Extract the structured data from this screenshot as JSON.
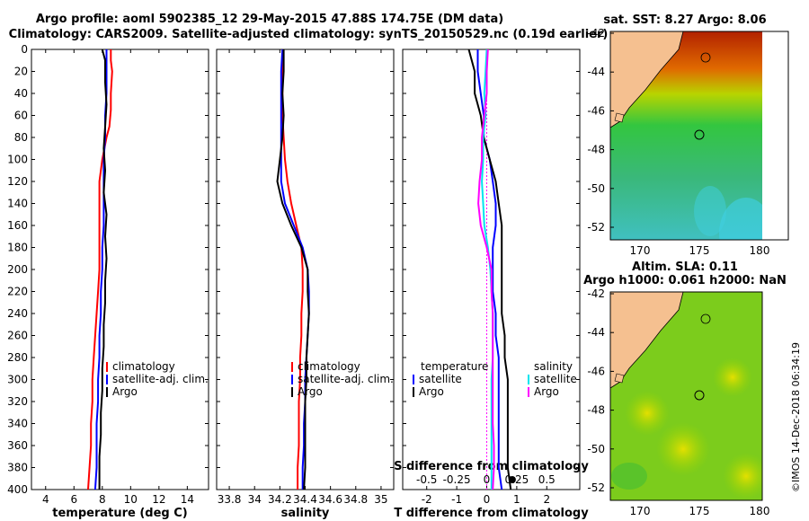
{
  "title_line1": "Argo profile: aoml 5902385_12 29-May-2015 47.88S 174.75E (DM data)",
  "title_line2": "Climatology: CARS2009. Satellite-adjusted climatology: synTS_20150529.nc (0.19d earlier)",
  "depth_ticks": [
    "0",
    "20",
    "40",
    "60",
    "80",
    "100",
    "120",
    "140",
    "160",
    "180",
    "200",
    "220",
    "240",
    "260",
    "280",
    "300",
    "320",
    "340",
    "360",
    "380",
    "400"
  ],
  "colors": {
    "climatology": "#ff0000",
    "satellite": "#0000ff",
    "argo": "#000000",
    "sat_salinity": "#00e5ee",
    "argo_salinity": "#ff00ff"
  },
  "chart_data": [
    {
      "type": "line",
      "name": "temperature",
      "xlabel": "temperature (deg C)",
      "xlim": [
        3,
        15.5
      ],
      "ylim": [
        0,
        400
      ],
      "xticks": [
        "4",
        "6",
        "8",
        "10",
        "12",
        "14"
      ],
      "legend": [
        "climatology",
        "satellite-adj. clim.",
        "Argo"
      ],
      "series": [
        {
          "name": "climatology",
          "color": "#ff0000",
          "points": [
            [
              8.6,
              0
            ],
            [
              8.6,
              10
            ],
            [
              8.7,
              20
            ],
            [
              8.6,
              40
            ],
            [
              8.6,
              55
            ],
            [
              8.5,
              70
            ],
            [
              8.3,
              80
            ],
            [
              8.0,
              100
            ],
            [
              7.8,
              120
            ],
            [
              7.8,
              140
            ],
            [
              7.8,
              160
            ],
            [
              7.8,
              180
            ],
            [
              7.8,
              200
            ],
            [
              7.7,
              220
            ],
            [
              7.6,
              240
            ],
            [
              7.5,
              260
            ],
            [
              7.4,
              280
            ],
            [
              7.3,
              300
            ],
            [
              7.3,
              320
            ],
            [
              7.2,
              340
            ],
            [
              7.2,
              360
            ],
            [
              7.1,
              380
            ],
            [
              7.0,
              400
            ]
          ]
        },
        {
          "name": "satellite-adj. clim.",
          "color": "#0000ff",
          "points": [
            [
              8.3,
              0
            ],
            [
              8.3,
              20
            ],
            [
              8.3,
              40
            ],
            [
              8.2,
              60
            ],
            [
              8.2,
              80
            ],
            [
              8.1,
              100
            ],
            [
              8.1,
              120
            ],
            [
              8.1,
              140
            ],
            [
              8.1,
              160
            ],
            [
              8.0,
              180
            ],
            [
              8.0,
              200
            ],
            [
              7.9,
              220
            ],
            [
              7.9,
              240
            ],
            [
              7.8,
              260
            ],
            [
              7.8,
              280
            ],
            [
              7.7,
              300
            ],
            [
              7.7,
              320
            ],
            [
              7.6,
              340
            ],
            [
              7.6,
              360
            ],
            [
              7.6,
              380
            ],
            [
              7.5,
              400
            ]
          ]
        },
        {
          "name": "Argo",
          "color": "#000000",
          "points": [
            [
              8.0,
              0
            ],
            [
              8.2,
              10
            ],
            [
              8.2,
              30
            ],
            [
              8.3,
              50
            ],
            [
              8.2,
              70
            ],
            [
              8.1,
              90
            ],
            [
              8.2,
              110
            ],
            [
              8.1,
              130
            ],
            [
              8.3,
              150
            ],
            [
              8.2,
              170
            ],
            [
              8.3,
              190
            ],
            [
              8.2,
              210
            ],
            [
              8.2,
              230
            ],
            [
              8.1,
              250
            ],
            [
              8.1,
              270
            ],
            [
              8.0,
              290
            ],
            [
              8.0,
              310
            ],
            [
              7.9,
              330
            ],
            [
              7.9,
              350
            ],
            [
              7.8,
              370
            ],
            [
              7.8,
              390
            ],
            [
              7.8,
              400
            ]
          ]
        }
      ]
    },
    {
      "type": "line",
      "name": "salinity",
      "xlabel": "salinity",
      "xlim": [
        33.7,
        35.1
      ],
      "ylim": [
        0,
        400
      ],
      "xticks": [
        "33.8",
        "34",
        "34.2",
        "34.4",
        "34.6",
        "34.8",
        "35"
      ],
      "legend": [
        "climatology",
        "satellite-adj. clim.",
        "Argo"
      ],
      "series": [
        {
          "name": "climatology",
          "color": "#ff0000",
          "points": [
            [
              34.22,
              0
            ],
            [
              34.22,
              20
            ],
            [
              34.22,
              40
            ],
            [
              34.22,
              60
            ],
            [
              34.23,
              80
            ],
            [
              34.24,
              100
            ],
            [
              34.26,
              120
            ],
            [
              34.29,
              140
            ],
            [
              34.33,
              160
            ],
            [
              34.37,
              180
            ],
            [
              34.38,
              200
            ],
            [
              34.38,
              220
            ],
            [
              34.37,
              240
            ],
            [
              34.37,
              260
            ],
            [
              34.36,
              280
            ],
            [
              34.36,
              300
            ],
            [
              34.35,
              320
            ],
            [
              34.35,
              340
            ],
            [
              34.35,
              360
            ],
            [
              34.34,
              380
            ],
            [
              34.34,
              400
            ]
          ]
        },
        {
          "name": "satellite-adj. clim.",
          "color": "#0000ff",
          "points": [
            [
              34.22,
              0
            ],
            [
              34.21,
              20
            ],
            [
              34.21,
              40
            ],
            [
              34.21,
              60
            ],
            [
              34.21,
              80
            ],
            [
              34.21,
              100
            ],
            [
              34.21,
              120
            ],
            [
              34.24,
              140
            ],
            [
              34.31,
              160
            ],
            [
              34.38,
              180
            ],
            [
              34.42,
              200
            ],
            [
              34.43,
              220
            ],
            [
              34.43,
              240
            ],
            [
              34.42,
              260
            ],
            [
              34.41,
              280
            ],
            [
              34.4,
              300
            ],
            [
              34.4,
              320
            ],
            [
              34.39,
              340
            ],
            [
              34.39,
              360
            ],
            [
              34.38,
              380
            ],
            [
              34.38,
              400
            ]
          ]
        },
        {
          "name": "Argo",
          "color": "#000000",
          "points": [
            [
              34.23,
              0
            ],
            [
              34.23,
              20
            ],
            [
              34.22,
              40
            ],
            [
              34.23,
              60
            ],
            [
              34.22,
              80
            ],
            [
              34.2,
              100
            ],
            [
              34.18,
              120
            ],
            [
              34.22,
              140
            ],
            [
              34.29,
              160
            ],
            [
              34.37,
              180
            ],
            [
              34.42,
              200
            ],
            [
              34.42,
              220
            ],
            [
              34.43,
              240
            ],
            [
              34.42,
              260
            ],
            [
              34.41,
              280
            ],
            [
              34.41,
              300
            ],
            [
              34.4,
              320
            ],
            [
              34.4,
              340
            ],
            [
              34.4,
              360
            ],
            [
              34.4,
              380
            ],
            [
              34.39,
              400
            ]
          ]
        }
      ]
    },
    {
      "type": "line",
      "name": "differences",
      "xlabel": "T difference from climatology",
      "xlim": [
        -2.8,
        3.1
      ],
      "ylim": [
        0,
        400
      ],
      "xticks": [
        "-2",
        "-1",
        "0",
        "1",
        "2"
      ],
      "top_xlabel": "S difference from climatology",
      "top_xticks": [
        "-0.5",
        "-0.25",
        "0",
        "0.25",
        "0.5"
      ],
      "legend_temperature_title": "temperature",
      "legend_temperature": [
        "satellite",
        "Argo"
      ],
      "legend_salinity_title": "salinity",
      "legend_salinity": [
        "satellite",
        "Argo"
      ],
      "series": [
        {
          "name": "T satellite",
          "color": "#0000ff",
          "points": [
            [
              -0.3,
              0
            ],
            [
              -0.3,
              20
            ],
            [
              -0.2,
              40
            ],
            [
              -0.1,
              60
            ],
            [
              -0.1,
              80
            ],
            [
              0.1,
              100
            ],
            [
              0.2,
              120
            ],
            [
              0.3,
              140
            ],
            [
              0.3,
              160
            ],
            [
              0.2,
              180
            ],
            [
              0.2,
              200
            ],
            [
              0.2,
              220
            ],
            [
              0.3,
              240
            ],
            [
              0.3,
              260
            ],
            [
              0.4,
              280
            ],
            [
              0.4,
              300
            ],
            [
              0.4,
              320
            ],
            [
              0.4,
              340
            ],
            [
              0.4,
              360
            ],
            [
              0.4,
              380
            ],
            [
              0.5,
              400
            ]
          ]
        },
        {
          "name": "T Argo",
          "color": "#000000",
          "points": [
            [
              -0.6,
              0
            ],
            [
              -0.4,
              20
            ],
            [
              -0.4,
              40
            ],
            [
              -0.2,
              60
            ],
            [
              -0.1,
              80
            ],
            [
              0.1,
              100
            ],
            [
              0.3,
              120
            ],
            [
              0.4,
              140
            ],
            [
              0.5,
              160
            ],
            [
              0.5,
              180
            ],
            [
              0.5,
              200
            ],
            [
              0.5,
              220
            ],
            [
              0.5,
              240
            ],
            [
              0.6,
              260
            ],
            [
              0.6,
              280
            ],
            [
              0.7,
              300
            ],
            [
              0.7,
              320
            ],
            [
              0.7,
              340
            ],
            [
              0.7,
              360
            ],
            [
              0.7,
              380
            ],
            [
              0.8,
              400
            ]
          ]
        },
        {
          "name": "S satellite",
          "color": "#00e5ee",
          "points": [
            [
              0.0,
              0
            ],
            [
              -0.01,
              20
            ],
            [
              -0.02,
              40
            ],
            [
              -0.01,
              60
            ],
            [
              -0.03,
              80
            ],
            [
              -0.03,
              100
            ],
            [
              -0.04,
              120
            ],
            [
              -0.03,
              140
            ],
            [
              -0.02,
              160
            ],
            [
              0.01,
              180
            ],
            [
              0.03,
              200
            ],
            [
              0.04,
              220
            ],
            [
              0.05,
              240
            ],
            [
              0.05,
              260
            ],
            [
              0.05,
              280
            ],
            [
              0.04,
              300
            ],
            [
              0.04,
              320
            ],
            [
              0.04,
              340
            ],
            [
              0.04,
              360
            ],
            [
              0.04,
              380
            ],
            [
              0.04,
              400
            ]
          ]
        },
        {
          "name": "S Argo",
          "color": "#ff00ff",
          "points": [
            [
              0.01,
              0
            ],
            [
              0.0,
              20
            ],
            [
              0.0,
              40
            ],
            [
              -0.02,
              60
            ],
            [
              -0.04,
              80
            ],
            [
              -0.04,
              100
            ],
            [
              -0.06,
              120
            ],
            [
              -0.07,
              140
            ],
            [
              -0.05,
              160
            ],
            [
              0.0,
              180
            ],
            [
              0.04,
              200
            ],
            [
              0.04,
              220
            ],
            [
              0.05,
              240
            ],
            [
              0.05,
              260
            ],
            [
              0.05,
              280
            ],
            [
              0.05,
              300
            ],
            [
              0.05,
              320
            ],
            [
              0.05,
              340
            ],
            [
              0.06,
              360
            ],
            [
              0.06,
              380
            ],
            [
              0.05,
              400
            ]
          ]
        }
      ]
    }
  ],
  "map1": {
    "title": "sat. SST: 8.27 Argo: 8.06",
    "yticks": [
      "-42",
      "-44",
      "-46",
      "-48",
      "-50",
      "-52"
    ],
    "xticks": [
      "170",
      "175",
      "180"
    ]
  },
  "map2": {
    "title_line1": "Altim. SLA: 0.11",
    "title_line2": "Argo h1000: 0.061 h2000: NaN",
    "yticks": [
      "-42",
      "-44",
      "-46",
      "-48",
      "-50",
      "-52"
    ],
    "xticks": [
      "170",
      "175",
      "180"
    ]
  },
  "credit": "©IMOS 14-Dec-2018 06:34:19"
}
